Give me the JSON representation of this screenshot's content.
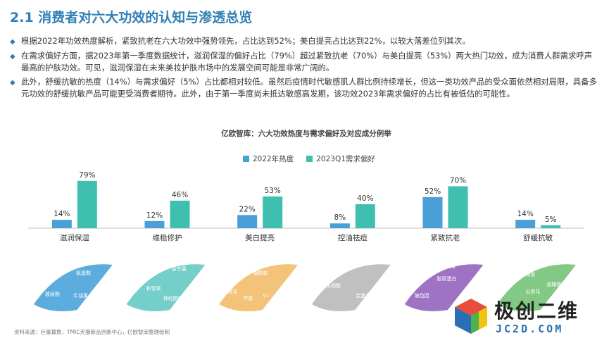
{
  "header": {
    "title": "2.1 消费者对六大功效的认知与渗透总览"
  },
  "bullets": [
    "根据2022年功效热度解析，紧致抗老在六大功效中强势领先，占比达到52%；美白提亮占比达到22%，以较大落差位列其次。",
    "在需求偏好方面，据2023年第一季度数据统计，滋润保湿的偏好占比（79%）超过紧致抗老（70%）与美白提亮（53%）两大热门功效，成为消费人群需求呼声最高的护肤功效。可见，滋润保湿在未来美妆护肤市场中的发展空间可能是非常广阔的。",
    "此外，舒缓抗敏的热度（14%）与需求偏好（5%）占比都相对较低。虽然后疫情时代敏感肌人群比例持续增长，但这一类功效产品的受众面依然相对局限，具备多元功效的舒缓抗敏产品可能更受消费者期待。此外，由于第一季度尚未抵达敏感高发期，该功效2023年需求偏好的占比有被低估的可能性。"
  ],
  "chart_data": {
    "type": "bar",
    "title": "亿欧智库：六大功效热度与需求偏好及对应成分例举",
    "categories": [
      "滋润保湿",
      "维稳修护",
      "美白提亮",
      "控油祛痘",
      "紧致抗老",
      "舒缓抗敏"
    ],
    "series": [
      {
        "name": "2022年热度",
        "color": "#4a9fd8",
        "values": [
          14,
          12,
          22,
          8,
          52,
          14
        ],
        "labels": [
          "14%",
          "12%",
          "22%",
          "8%",
          "52%",
          "14%"
        ]
      },
      {
        "name": "2023Q1需求偏好",
        "color": "#3fbfb0",
        "values": [
          79,
          46,
          53,
          40,
          70,
          5
        ],
        "labels": [
          "79%",
          "46%",
          "53%",
          "40%",
          "70%",
          "5%"
        ]
      }
    ],
    "ylim": [
      0,
      100
    ],
    "legend": "top-center",
    "grid": false
  },
  "ingredients": [
    {
      "name": "滋润保湿",
      "color": "#3f9fd8",
      "items": [
        "氨基酸",
        "玻尿酸",
        "牛油果"
      ]
    },
    {
      "name": "维稳修护",
      "color": "#5cc6c0",
      "items": [
        "益生菌",
        "积雪草",
        "神经酰胺"
      ]
    },
    {
      "name": "美白提亮",
      "color": "#f0b860",
      "items": [
        "石榴",
        "烟酰胺",
        "樱花",
        "芦荟",
        "Vc"
      ]
    },
    {
      "name": "控油祛痘",
      "color": "#b5b5b5",
      "items": [
        "水杨酸",
        "金盏花"
      ]
    },
    {
      "name": "紧致抗老",
      "color": "#8e5ab8",
      "items": [
        "珍珠",
        "玫瑰",
        "胶原蛋白",
        "玻色因"
      ]
    },
    {
      "name": "舒缓抗敏",
      "color": "#6cc070",
      "items": [
        "绿茶",
        "油橄榄",
        "山茶花"
      ]
    }
  ],
  "source": "资料来源：巨量算数，TMIC天猫新品创新中心，亿欧智库整理绘制",
  "watermark": {
    "cn": "极创二维",
    "en": "JC2D.COM"
  }
}
